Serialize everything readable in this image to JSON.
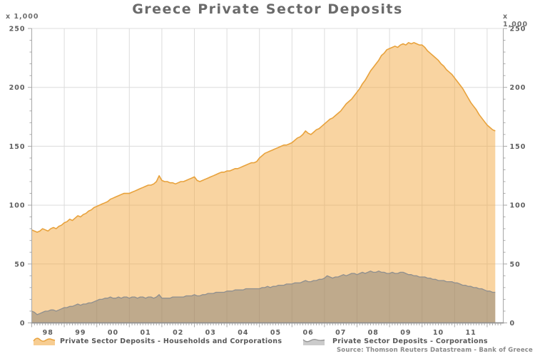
{
  "chart_data": {
    "type": "area",
    "title": "Greece Private Sector Deposits",
    "unit_label": "x 1,000",
    "source": "Source: Thomson Reuters Datastream - Bank of Greece",
    "x_start_year": 1998,
    "x_months_per_point": 1,
    "categories": [
      "98",
      "99",
      "00",
      "01",
      "02",
      "03",
      "04",
      "05",
      "06",
      "07",
      "08",
      "09",
      "10",
      "11"
    ],
    "y_ticks": [
      0,
      50,
      100,
      150,
      200,
      250
    ],
    "y_minor_step": 10,
    "ylim": [
      0,
      250
    ],
    "grid": true,
    "legend_position": "bottom",
    "colors": {
      "households_line": "#e8a23c",
      "households_fill": "rgba(242,166,58,0.48)",
      "corporations_line": "#8f8f8f",
      "corporations_fill": "rgba(112,112,112,0.42)",
      "gridline": "#dcdcdc",
      "axis": "#a8a8a8",
      "tick_label": "#5e5e5e"
    },
    "series": [
      {
        "name": "Private Sector Deposits - Households and Corporations",
        "values": [
          79,
          78,
          77,
          78,
          80,
          79,
          78,
          80,
          81,
          80,
          82,
          83,
          85,
          86,
          88,
          87,
          89,
          91,
          90,
          92,
          93,
          95,
          96,
          98,
          99,
          100,
          101,
          102,
          103,
          105,
          106,
          107,
          108,
          109,
          110,
          110,
          110,
          111,
          112,
          113,
          114,
          115,
          116,
          117,
          117,
          118,
          120,
          125,
          121,
          120,
          120,
          119,
          119,
          118,
          119,
          120,
          120,
          121,
          122,
          123,
          124,
          121,
          120,
          121,
          122,
          123,
          124,
          125,
          126,
          127,
          128,
          128,
          129,
          129,
          130,
          131,
          131,
          132,
          133,
          134,
          135,
          136,
          136,
          137,
          140,
          142,
          144,
          145,
          146,
          147,
          148,
          149,
          150,
          151,
          151,
          152,
          153,
          155,
          157,
          158,
          160,
          163,
          161,
          160,
          162,
          164,
          165,
          167,
          169,
          171,
          173,
          174,
          176,
          178,
          180,
          183,
          186,
          188,
          190,
          193,
          196,
          199,
          203,
          206,
          210,
          214,
          217,
          220,
          223,
          227,
          229,
          232,
          233,
          234,
          235,
          234,
          236,
          237,
          236,
          238,
          237,
          238,
          237,
          236,
          236,
          234,
          231,
          229,
          227,
          225,
          223,
          220,
          218,
          215,
          213,
          211,
          208,
          205,
          202,
          199,
          195,
          191,
          187,
          184,
          181,
          177,
          174,
          171,
          168,
          166,
          164,
          163
        ]
      },
      {
        "name": "Private Sector Deposits - Corporations",
        "values": [
          10,
          9,
          7,
          8,
          9,
          10,
          10,
          11,
          11,
          10,
          11,
          12,
          13,
          13,
          14,
          14,
          15,
          16,
          15,
          16,
          16,
          17,
          17,
          18,
          19,
          20,
          20,
          21,
          21,
          22,
          21,
          21,
          22,
          21,
          22,
          22,
          21,
          22,
          22,
          21,
          22,
          22,
          21,
          22,
          22,
          21,
          22,
          24,
          21,
          21,
          21,
          21,
          22,
          22,
          22,
          22,
          22,
          23,
          23,
          23,
          24,
          23,
          23,
          24,
          24,
          25,
          25,
          25,
          26,
          26,
          26,
          26,
          27,
          27,
          27,
          28,
          28,
          28,
          28,
          29,
          29,
          29,
          29,
          29,
          29,
          30,
          30,
          31,
          30,
          31,
          31,
          32,
          32,
          32,
          33,
          33,
          33,
          34,
          34,
          34,
          35,
          36,
          35,
          35,
          36,
          36,
          37,
          37,
          38,
          40,
          39,
          38,
          39,
          39,
          40,
          41,
          40,
          41,
          42,
          42,
          41,
          42,
          43,
          42,
          43,
          44,
          43,
          43,
          44,
          43,
          43,
          42,
          42,
          43,
          42,
          42,
          43,
          43,
          42,
          41,
          41,
          40,
          40,
          39,
          39,
          39,
          38,
          38,
          37,
          37,
          36,
          36,
          36,
          35,
          35,
          35,
          34,
          34,
          33,
          32,
          32,
          31,
          31,
          30,
          30,
          29,
          29,
          28,
          27,
          27,
          26,
          26
        ]
      }
    ]
  }
}
